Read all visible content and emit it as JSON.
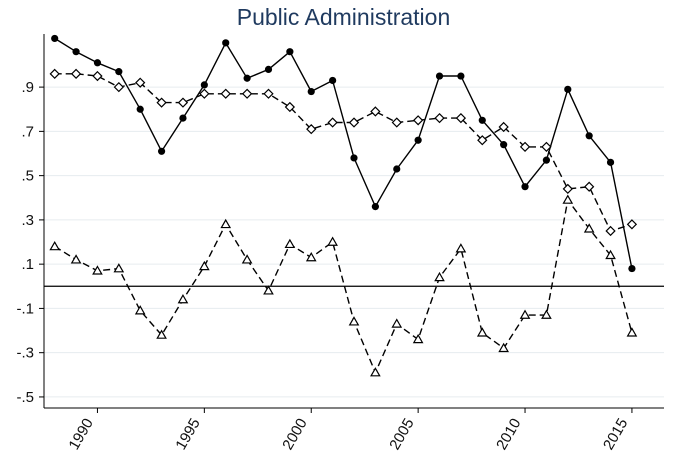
{
  "chart_data": {
    "type": "line",
    "title": "Public Administration",
    "xlabel": "",
    "ylabel": "",
    "xlim": [
      1987.5,
      2016.5
    ],
    "ylim": [
      -0.55,
      1.14
    ],
    "yticks": [
      -0.5,
      -0.3,
      -0.1,
      0.1,
      0.3,
      0.5,
      0.7,
      0.9
    ],
    "ytick_labels": [
      "-.5",
      "-.3",
      "-.1",
      ".1",
      ".3",
      ".5",
      ".7",
      ".9"
    ],
    "xticks": [
      1990,
      1995,
      2000,
      2005,
      2010,
      2015
    ],
    "xtick_labels": [
      "1990",
      "1995",
      "2000",
      "2005",
      "2010",
      "2015"
    ],
    "grid": true,
    "reference_line_y": 0,
    "series": [
      {
        "style": "solid",
        "marker": "filled-circle",
        "x": [
          1988,
          1989,
          1990,
          1991,
          1992,
          1993,
          1994,
          1995,
          1996,
          1997,
          1998,
          1999,
          2000,
          2001,
          2002,
          2003,
          2004,
          2005,
          2006,
          2007,
          2008,
          2009,
          2010,
          2011,
          2012,
          2013,
          2014,
          2015
        ],
        "values": [
          1.12,
          1.06,
          1.01,
          0.97,
          0.8,
          0.61,
          0.76,
          0.91,
          1.1,
          0.94,
          0.98,
          1.06,
          0.88,
          0.93,
          0.58,
          0.36,
          0.53,
          0.66,
          0.95,
          0.95,
          0.75,
          0.64,
          0.45,
          0.57,
          0.89,
          0.68,
          0.56,
          0.08
        ]
      },
      {
        "style": "dashed",
        "marker": "hollow-diamond",
        "x": [
          1988,
          1989,
          1990,
          1991,
          1992,
          1993,
          1994,
          1995,
          1996,
          1997,
          1998,
          1999,
          2000,
          2001,
          2002,
          2003,
          2004,
          2005,
          2006,
          2007,
          2008,
          2009,
          2010,
          2011,
          2012,
          2013,
          2014,
          2015
        ],
        "values": [
          0.96,
          0.96,
          0.95,
          0.9,
          0.92,
          0.83,
          0.83,
          0.87,
          0.87,
          0.87,
          0.87,
          0.81,
          0.71,
          0.74,
          0.74,
          0.79,
          0.74,
          0.75,
          0.76,
          0.76,
          0.66,
          0.72,
          0.63,
          0.63,
          0.44,
          0.45,
          0.25,
          0.28
        ]
      },
      {
        "style": "dashed",
        "marker": "hollow-triangle",
        "x": [
          1988,
          1989,
          1990,
          1991,
          1992,
          1993,
          1994,
          1995,
          1996,
          1997,
          1998,
          1999,
          2000,
          2001,
          2002,
          2003,
          2004,
          2005,
          2006,
          2007,
          2008,
          2009,
          2010,
          2011,
          2012,
          2013,
          2014,
          2015
        ],
        "values": [
          0.18,
          0.12,
          0.07,
          0.08,
          -0.11,
          -0.22,
          -0.06,
          0.09,
          0.28,
          0.12,
          -0.02,
          0.19,
          0.13,
          0.2,
          -0.16,
          -0.39,
          -0.17,
          -0.24,
          0.04,
          0.17,
          -0.21,
          -0.28,
          -0.13,
          -0.13,
          0.39,
          0.26,
          0.14,
          -0.21
        ]
      }
    ]
  }
}
